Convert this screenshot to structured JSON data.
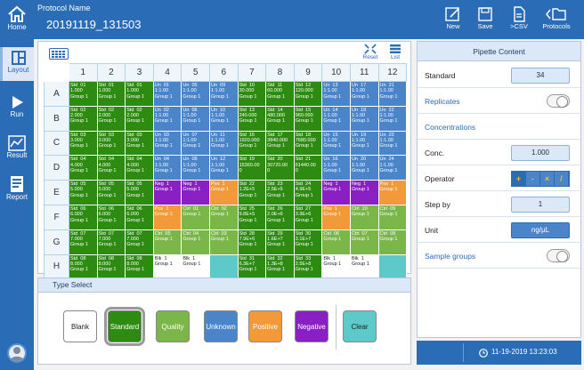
{
  "header": {
    "protocol_label": "Protocol Name",
    "protocol_name": "20191119_131503"
  },
  "toolbar": {
    "new": "New",
    "save": "Save",
    "csv": ">CSV",
    "protocols": "Protocols"
  },
  "sidebar": {
    "home": "Home",
    "layout": "Layout",
    "run": "Run",
    "result": "Result",
    "report": "Report"
  },
  "plate": {
    "reset": "Reset",
    "list": "List",
    "columns": [
      "1",
      "2",
      "3",
      "4",
      "5",
      "6",
      "7",
      "8",
      "9",
      "10",
      "11",
      "12"
    ],
    "rows": [
      {
        "label": "A",
        "cells": [
          {
            "t": "Std  01\n1.000\nGroup 1",
            "c": "#2e8b12"
          },
          {
            "t": "Std  01\n1.000\nGroup 1",
            "c": "#2e8b12"
          },
          {
            "t": "Std  01\n1.000\nGroup 1",
            "c": "#2e8b12"
          },
          {
            "t": "Un  01\n1:1.00\nGroup 1",
            "c": "#4a84c9"
          },
          {
            "t": "Un  05\n1:1.00\nGroup 1",
            "c": "#4a84c9"
          },
          {
            "t": "Un  09\n1:1.00\nGroup 1",
            "c": "#4a84c9"
          },
          {
            "t": "Std  10\n30.000\nGroup 1",
            "c": "#2e8b12"
          },
          {
            "t": "Std  11\n60.000\nGroup 1",
            "c": "#2e8b12"
          },
          {
            "t": "Std  12\n120.000\nGroup 1",
            "c": "#2e8b12"
          },
          {
            "t": "Un  13\n1:1.00\nGroup 1",
            "c": "#4a84c9"
          },
          {
            "t": "Un  17\n1:1.00\nGroup 1",
            "c": "#4a84c9"
          },
          {
            "t": "Un  21\n1:1.00\nGroup 1",
            "c": "#4a84c9"
          }
        ]
      },
      {
        "label": "B",
        "cells": [
          {
            "t": "Std  02\n2.000\nGroup 1",
            "c": "#2e8b12"
          },
          {
            "t": "Std  02\n2.000\nGroup 1",
            "c": "#2e8b12"
          },
          {
            "t": "Std  02\n2.000\nGroup 1",
            "c": "#2e8b12"
          },
          {
            "t": "Un  02\n1:1.00\nGroup 1",
            "c": "#4a84c9"
          },
          {
            "t": "Un  06\n1:1.00\nGroup 1",
            "c": "#4a84c9"
          },
          {
            "t": "Un  10\n1:1.00\nGroup 1",
            "c": "#4a84c9"
          },
          {
            "t": "Std  13\n240.000\nGroup 1",
            "c": "#2e8b12"
          },
          {
            "t": "Std  14\n480.000\nGroup 1",
            "c": "#2e8b12"
          },
          {
            "t": "Std  15\n960.000\nGroup 1",
            "c": "#2e8b12"
          },
          {
            "t": "Un  14\n1:1.00\nGroup 1",
            "c": "#4a84c9"
          },
          {
            "t": "Un  18\n1:1.00\nGroup 1",
            "c": "#4a84c9"
          },
          {
            "t": "Un  22\n1:1.00\nGroup 1",
            "c": "#4a84c9"
          }
        ]
      },
      {
        "label": "C",
        "cells": [
          {
            "t": "Std  03\n3.000\nGroup 1",
            "c": "#2e8b12"
          },
          {
            "t": "Std  03\n3.000\nGroup 1",
            "c": "#2e8b12"
          },
          {
            "t": "Std  03\n3.000\nGroup 1",
            "c": "#2e8b12"
          },
          {
            "t": "Un  03\n1:1.00\nGroup 1",
            "c": "#4a84c9"
          },
          {
            "t": "Un  07\n1:1.00\nGroup 1",
            "c": "#4a84c9"
          },
          {
            "t": "Un  11\n1:1.00\nGroup 1",
            "c": "#4a84c9"
          },
          {
            "t": "Std  16\n1920.000\nGroup 1",
            "c": "#2e8b12"
          },
          {
            "t": "Std  17\n3840.000\nGroup 1",
            "c": "#2e8b12"
          },
          {
            "t": "Std  18\n7680.000\nGroup 1",
            "c": "#2e8b12"
          },
          {
            "t": "Un  15\n1:1.00\nGroup 1",
            "c": "#4a84c9"
          },
          {
            "t": "Un  19\n1:1.00\nGroup 1",
            "c": "#4a84c9"
          },
          {
            "t": "Un  23\n1:1.00\nGroup 1",
            "c": "#4a84c9"
          }
        ]
      },
      {
        "label": "D",
        "cells": [
          {
            "t": "Std  04\n4.000\nGroup 1",
            "c": "#2e8b12"
          },
          {
            "t": "Std  04\n4.000\nGroup 1",
            "c": "#2e8b12"
          },
          {
            "t": "Std  04\n4.000\nGroup 1",
            "c": "#2e8b12"
          },
          {
            "t": "Un  04\n1:1.00\nGroup 1",
            "c": "#4a84c9"
          },
          {
            "t": "Un  08\n1:1.00\nGroup 1",
            "c": "#4a84c9"
          },
          {
            "t": "Un  12\n1:1.00\nGroup 1",
            "c": "#4a84c9"
          },
          {
            "t": "Std  19\n15360.00\n0",
            "c": "#2e8b12"
          },
          {
            "t": "Std  20\n30720.00\n0",
            "c": "#2e8b12"
          },
          {
            "t": "Std  21\n61440.00\n0",
            "c": "#2e8b12"
          },
          {
            "t": "Un  16\n1:1.00\nGroup 1",
            "c": "#4a84c9"
          },
          {
            "t": "Un  20\n1:1.00\nGroup 1",
            "c": "#4a84c9"
          },
          {
            "t": "Un  24\n1:1.00\nGroup 1",
            "c": "#4a84c9"
          }
        ]
      },
      {
        "label": "E",
        "cells": [
          {
            "t": "Std  05\n5.000\nGroup 1",
            "c": "#2e8b12"
          },
          {
            "t": "Std  05\n5.000\nGroup 1",
            "c": "#2e8b12"
          },
          {
            "t": "Std  05\n5.000\nGroup 1",
            "c": "#2e8b12"
          },
          {
            "t": "Neg  1\nGroup 1",
            "c": "#8a1fc4"
          },
          {
            "t": "Neg  1\nGroup 1",
            "c": "#8a1fc4"
          },
          {
            "t": "Pos  1\nGroup 1",
            "c": "#f29a3a"
          },
          {
            "t": "Std  22\n1.2E+5\nGroup 1",
            "c": "#2e8b12"
          },
          {
            "t": "Std  23\n2.5E+5\nGroup 1",
            "c": "#2e8b12"
          },
          {
            "t": "Std  24\n4.9E+5\nGroup 1",
            "c": "#2e8b12"
          },
          {
            "t": "Neg  1\nGroup 1",
            "c": "#8a1fc4"
          },
          {
            "t": "Neg  1\nGroup 1",
            "c": "#8a1fc4"
          },
          {
            "t": "Pos  1\nGroup 1",
            "c": "#f29a3a"
          }
        ]
      },
      {
        "label": "F",
        "cells": [
          {
            "t": "Std  06\n6.000\nGroup 1",
            "c": "#2e8b12"
          },
          {
            "t": "Std  06\n6.000\nGroup 1",
            "c": "#2e8b12"
          },
          {
            "t": "Std  06\n6.000\nGroup 1",
            "c": "#2e8b12"
          },
          {
            "t": "Pos  1\nGroup 1",
            "c": "#f29a3a"
          },
          {
            "t": "Ctrl  01\nGroup 1",
            "c": "#7ab648"
          },
          {
            "t": "Ctrl  02\nGroup 1",
            "c": "#7ab648"
          },
          {
            "t": "Std  25\n9.8E+5\nGroup 1",
            "c": "#2e8b12"
          },
          {
            "t": "Std  26\n2.0E+6\nGroup 1",
            "c": "#2e8b12"
          },
          {
            "t": "Std  27\n3.9E+6\nGroup 1",
            "c": "#2e8b12"
          },
          {
            "t": "Pos  1\nGroup 1",
            "c": "#f29a3a"
          },
          {
            "t": "Ctrl  10\nGroup 1",
            "c": "#7ab648"
          },
          {
            "t": "Ctrl  09\nGroup 1",
            "c": "#7ab648"
          }
        ]
      },
      {
        "label": "G",
        "cells": [
          {
            "t": "Std  07\n7.000\nGroup 1",
            "c": "#2e8b12"
          },
          {
            "t": "Std  07\n7.000\nGroup 1",
            "c": "#2e8b12"
          },
          {
            "t": "Std  07\n7.000\nGroup 1",
            "c": "#2e8b12"
          },
          {
            "t": "Ctrl  05\nGroup 1",
            "c": "#7ab648"
          },
          {
            "t": "Ctrl  04\nGroup 1",
            "c": "#7ab648"
          },
          {
            "t": "Ctrl  03\nGroup 1",
            "c": "#7ab648"
          },
          {
            "t": "Std  28\n7.9E+6\nGroup 1",
            "c": "#2e8b12"
          },
          {
            "t": "Std  29\n1.6E+7\nGroup 1",
            "c": "#2e8b12"
          },
          {
            "t": "Std  30\n3.1E+7\nGroup 1",
            "c": "#2e8b12"
          },
          {
            "t": "Ctrl  06\nGroup 1",
            "c": "#7ab648"
          },
          {
            "t": "Ctrl  07\nGroup 1",
            "c": "#7ab648"
          },
          {
            "t": "Ctrl  08\nGroup 1",
            "c": "#7ab648"
          }
        ]
      },
      {
        "label": "H",
        "cells": [
          {
            "t": "Std  08\n8.000\nGroup 1",
            "c": "#2e8b12"
          },
          {
            "t": "Std  08\n8.000\nGroup 1",
            "c": "#2e8b12"
          },
          {
            "t": "Std  08\n8.000\nGroup 1",
            "c": "#2e8b12"
          },
          {
            "t": "Blk  1\nGroup 1",
            "c": "#ffffff"
          },
          {
            "t": "Blk  1\nGroup 1",
            "c": "#ffffff"
          },
          {
            "t": "",
            "c": "#5ec9c9"
          },
          {
            "t": "Std  31\n6.3E+7\nGroup 1",
            "c": "#2e8b12"
          },
          {
            "t": "Std  32\n1.3E+8\nGroup 1",
            "c": "#2e8b12"
          },
          {
            "t": "Std  33\n2.5E+8\nGroup 1",
            "c": "#2e8b12"
          },
          {
            "t": "Blk  1\nGroup 1",
            "c": "#ffffff"
          },
          {
            "t": "Blk  1\nGroup 1",
            "c": "#ffffff"
          },
          {
            "t": "",
            "c": "#5ec9c9"
          }
        ]
      }
    ]
  },
  "type_select": {
    "title": "Type Select",
    "buttons": [
      {
        "label": "Blank",
        "bg": "#ffffff",
        "fg": "#222222"
      },
      {
        "label": "Standard",
        "bg": "#2e8b12",
        "fg": "#ffffff"
      },
      {
        "label": "Quality",
        "bg": "#7ab648",
        "fg": "#ffffff"
      },
      {
        "label": "Unknown",
        "bg": "#4a84c9",
        "fg": "#ffffff"
      },
      {
        "label": "Positive",
        "bg": "#f29a3a",
        "fg": "#ffffff"
      },
      {
        "label": "Negative",
        "bg": "#8a1fc4",
        "fg": "#ffffff"
      },
      {
        "label": "Clear",
        "bg": "#5ec9c9",
        "fg": "#222222"
      }
    ]
  },
  "pipette": {
    "title": "Pipette Content",
    "standard_label": "Standard",
    "standard_value": "34",
    "replicates_label": "Replicates",
    "concentrations_label": "Concentrations",
    "conc_label": "Conc.",
    "conc_value": "1.000",
    "operator_label": "Operator",
    "operators": [
      "+",
      "-",
      "×",
      "/"
    ],
    "step_label": "Step by",
    "step_value": "1",
    "unit_label": "Unit",
    "unit_value": "ng/μL",
    "sample_groups_label": "Sample groups"
  },
  "footer": {
    "datetime": "11-19-2019 13:23:03"
  },
  "colors": {
    "brand": "#2a6cb5",
    "standard": "#2e8b12",
    "unknown": "#4a84c9",
    "quality": "#7ab648",
    "positive": "#f29a3a",
    "negative": "#8a1fc4",
    "clear": "#5ec9c9"
  }
}
